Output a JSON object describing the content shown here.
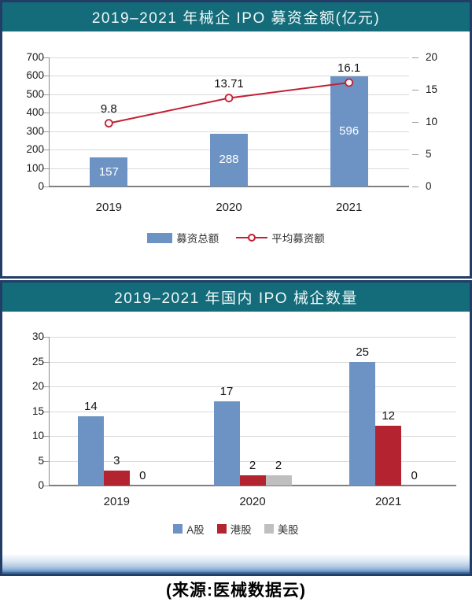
{
  "source": "(来源:医械数据云)",
  "colors": {
    "teal_header": "#146b79",
    "navy_border": "#223d66",
    "bar_blue": "#6d93c4",
    "bar_red": "#b42330",
    "bar_gray": "#bfbfbf",
    "line_red": "#c22033",
    "gridline": "#dadada",
    "axis": "#8c8c8c"
  },
  "chart_data": [
    {
      "type": "bar+line",
      "title": "2019–2021 年械企 IPO 募资金额(亿元)",
      "categories": [
        "2019",
        "2020",
        "2021"
      ],
      "series": [
        {
          "name": "募资总额",
          "type": "bar",
          "axis": "left",
          "color_key": "bar_blue",
          "values": [
            157,
            288,
            596
          ]
        },
        {
          "name": "平均募资额",
          "type": "line",
          "axis": "right",
          "color_key": "line_red",
          "values": [
            9.8,
            13.71,
            16.1
          ]
        }
      ],
      "left_axis": {
        "min": 0,
        "max": 700,
        "step": 100,
        "ticks": [
          0,
          100,
          200,
          300,
          400,
          500,
          600,
          700
        ]
      },
      "right_axis": {
        "min": 0,
        "max": 20,
        "step": 5,
        "ticks": [
          0,
          5,
          10,
          15,
          20
        ]
      },
      "grid": true,
      "legend_position": "bottom",
      "point_labels": [
        "9.8",
        "13.71",
        "16.1"
      ],
      "bar_labels": [
        "157",
        "288",
        "596"
      ]
    },
    {
      "type": "bar",
      "title": "2019–2021 年国内 IPO 械企数量",
      "categories": [
        "2019",
        "2020",
        "2021"
      ],
      "series": [
        {
          "name": "A股",
          "color_key": "bar_blue",
          "values": [
            14,
            17,
            25
          ]
        },
        {
          "name": "港股",
          "color_key": "bar_red",
          "values": [
            3,
            2,
            12
          ]
        },
        {
          "name": "美股",
          "color_key": "bar_gray",
          "values": [
            0,
            2,
            0
          ]
        }
      ],
      "y_axis": {
        "min": 0,
        "max": 30,
        "step": 5,
        "ticks": [
          0,
          5,
          10,
          15,
          20,
          25,
          30
        ]
      },
      "grid": true,
      "legend_position": "bottom"
    }
  ]
}
